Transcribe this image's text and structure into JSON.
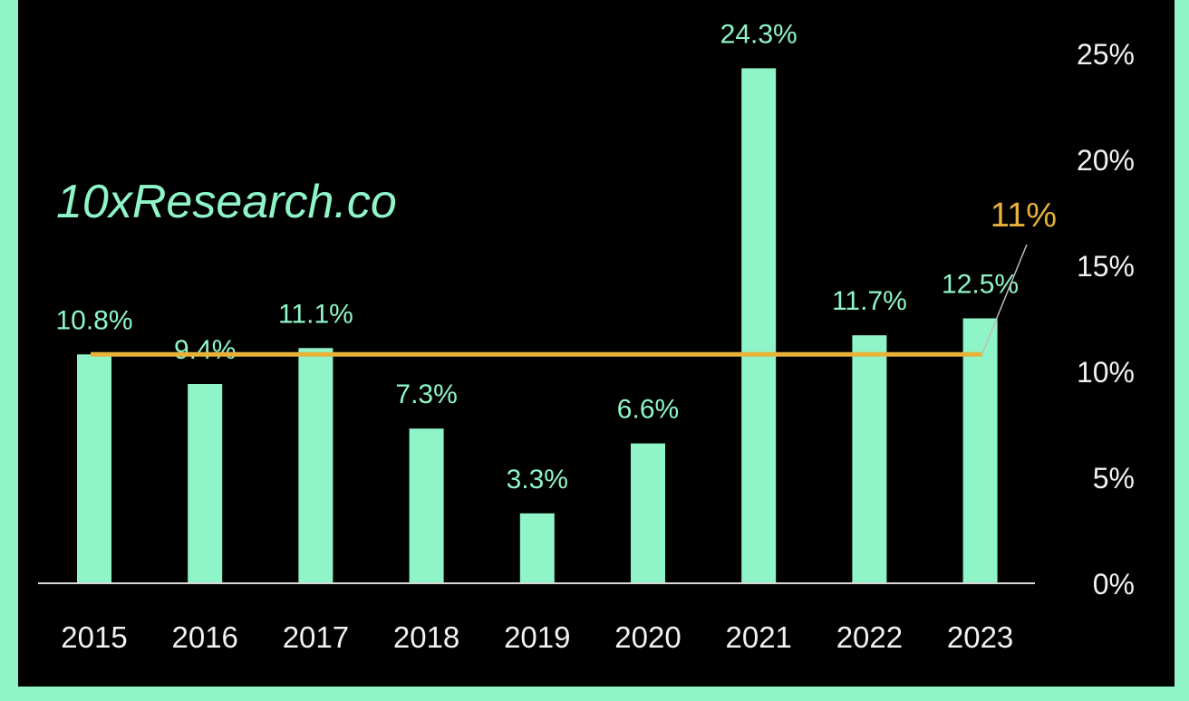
{
  "watermark": "10xResearch.co",
  "colors": {
    "background": "#000000",
    "frame": "#8ff5c8",
    "bar": "#8ff5c8",
    "average_line": "#e8b23a",
    "axis_text": "#f2f2f2",
    "data_label": "#8ff5c8"
  },
  "chart_data": {
    "type": "bar",
    "categories": [
      "2015",
      "2016",
      "2017",
      "2018",
      "2019",
      "2020",
      "2021",
      "2022",
      "2023"
    ],
    "values": [
      10.8,
      9.4,
      11.1,
      7.3,
      3.3,
      6.6,
      24.3,
      11.7,
      12.5
    ],
    "data_labels": [
      "10.8%",
      "9.4%",
      "11.1%",
      "7.3%",
      "3.3%",
      "6.6%",
      "24.3%",
      "11.7%",
      "12.5%"
    ],
    "ylim": [
      0,
      25
    ],
    "y_ticks": [
      {
        "value": 0,
        "label": "0%"
      },
      {
        "value": 5,
        "label": "5%"
      },
      {
        "value": 10,
        "label": "10%"
      },
      {
        "value": 15,
        "label": "15%"
      },
      {
        "value": 20,
        "label": "20%"
      },
      {
        "value": 25,
        "label": "25%"
      }
    ],
    "y_axis_side": "right",
    "grid": false,
    "reference_line": {
      "value": 10.8,
      "label": "11%"
    }
  }
}
